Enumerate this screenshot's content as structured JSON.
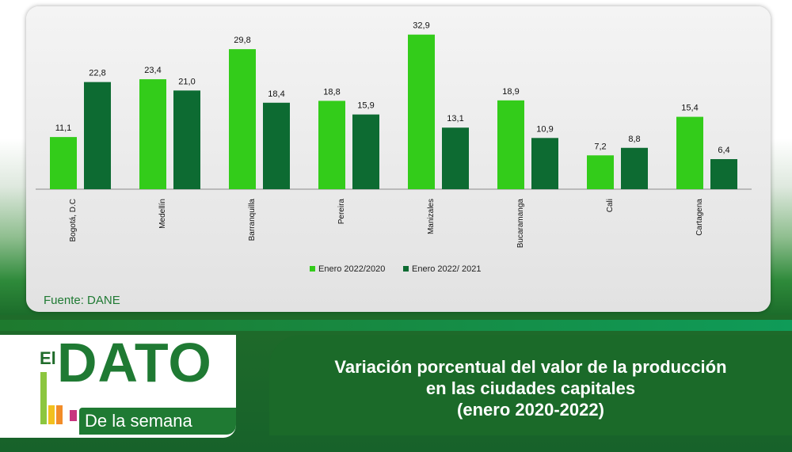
{
  "chart_data": {
    "type": "bar",
    "categories": [
      "Bogotá, D.C",
      "Medellín",
      "Barranquilla",
      "Pereira",
      "Manizales",
      "Bucaramanga",
      "Cali",
      "Cartagena"
    ],
    "series": [
      {
        "name": "Enero 2022/2020",
        "color": "#33cc1a",
        "values": [
          11.1,
          23.4,
          29.8,
          18.8,
          32.9,
          18.9,
          7.2,
          15.4
        ],
        "labels": [
          "11,1",
          "23,4",
          "29,8",
          "18,8",
          "32,9",
          "18,9",
          "7,2",
          "15,4"
        ]
      },
      {
        "name": "Enero 2022/ 2021",
        "color": "#0d6b32",
        "values": [
          22.8,
          21.0,
          18.4,
          15.9,
          13.1,
          10.9,
          8.8,
          6.4
        ],
        "labels": [
          "22,8",
          "21,0",
          "18,4",
          "15,9",
          "13,1",
          "10,9",
          "8,8",
          "6,4"
        ]
      }
    ],
    "ylim": [
      0,
      35
    ],
    "grid": false,
    "legend_position": "bottom"
  },
  "source": "Fuente: DANE",
  "logo": {
    "el": "El",
    "dato": "DATO",
    "subtitle": "De la semana"
  },
  "title_lines": [
    "Variación porcentual del valor de la producción",
    "en las ciudades capitales",
    "(enero 2020-2022)"
  ]
}
